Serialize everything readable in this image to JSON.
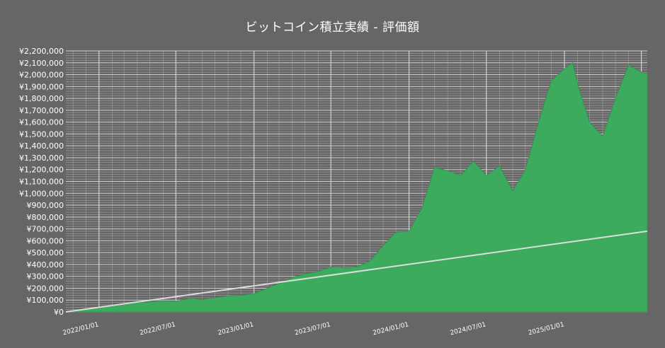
{
  "chart_data": {
    "type": "area",
    "title": "ビットコイン積立実績 - 評価額",
    "xlabel": "",
    "ylabel": "",
    "x_range": [
      "2021/10/15",
      "2025/07/15"
    ],
    "ylim": [
      0,
      2200000
    ],
    "y_tick_values": [
      0,
      100000,
      200000,
      300000,
      400000,
      500000,
      600000,
      700000,
      800000,
      900000,
      1000000,
      1100000,
      1200000,
      1300000,
      1400000,
      1500000,
      1600000,
      1700000,
      1800000,
      1900000,
      2000000,
      2100000,
      2200000
    ],
    "y_tick_labels": [
      "¥0",
      "¥100,000",
      "¥200,000",
      "¥300,000",
      "¥400,000",
      "¥500,000",
      "¥600,000",
      "¥700,000",
      "¥800,000",
      "¥900,000",
      "¥1,000,000",
      "¥1,100,000",
      "¥1,200,000",
      "¥1,300,000",
      "¥1,400,000",
      "¥1,500,000",
      "¥1,600,000",
      "¥1,700,000",
      "¥1,800,000",
      "¥1,900,000",
      "¥2,000,000",
      "¥2,100,000",
      "¥2,200,000"
    ],
    "x_tick_labels": [
      "2022/01/01",
      "2022/07/01",
      "2023/01/01",
      "2023/07/01",
      "2024/01/01",
      "2024/07/01",
      "2025/01/01"
    ],
    "grid": true,
    "colors": {
      "background": "#666666",
      "area": "#3dab5e",
      "line": "#dddddd",
      "grid": "#d6d6d6"
    },
    "series": [
      {
        "style": "area",
        "points": [
          [
            "2021/10/15",
            0
          ],
          [
            "2021/11/01",
            10000
          ],
          [
            "2021/12/01",
            25000
          ],
          [
            "2022/01/01",
            38000
          ],
          [
            "2022/02/01",
            50000
          ],
          [
            "2022/03/01",
            62000
          ],
          [
            "2022/04/01",
            78000
          ],
          [
            "2022/05/01",
            85000
          ],
          [
            "2022/06/01",
            95000
          ],
          [
            "2022/07/01",
            88000
          ],
          [
            "2022/08/01",
            115000
          ],
          [
            "2022/09/01",
            105000
          ],
          [
            "2022/10/01",
            120000
          ],
          [
            "2022/11/01",
            135000
          ],
          [
            "2022/12/01",
            140000
          ],
          [
            "2023/01/01",
            155000
          ],
          [
            "2023/02/01",
            200000
          ],
          [
            "2023/03/01",
            240000
          ],
          [
            "2023/04/01",
            290000
          ],
          [
            "2023/05/01",
            320000
          ],
          [
            "2023/06/01",
            340000
          ],
          [
            "2023/07/01",
            380000
          ],
          [
            "2023/08/01",
            370000
          ],
          [
            "2023/09/01",
            380000
          ],
          [
            "2023/10/01",
            430000
          ],
          [
            "2023/11/01",
            560000
          ],
          [
            "2023/12/01",
            670000
          ],
          [
            "2024/01/01",
            680000
          ],
          [
            "2024/02/01",
            880000
          ],
          [
            "2024/03/01",
            1220000
          ],
          [
            "2024/04/01",
            1190000
          ],
          [
            "2024/05/01",
            1150000
          ],
          [
            "2024/06/01",
            1270000
          ],
          [
            "2024/07/01",
            1150000
          ],
          [
            "2024/08/01",
            1230000
          ],
          [
            "2024/09/01",
            1020000
          ],
          [
            "2024/10/01",
            1200000
          ],
          [
            "2024/11/01",
            1600000
          ],
          [
            "2024/12/01",
            1950000
          ],
          [
            "2025/01/01",
            2050000
          ],
          [
            "2025/01/20",
            2100000
          ],
          [
            "2025/02/01",
            1920000
          ],
          [
            "2025/03/01",
            1600000
          ],
          [
            "2025/04/01",
            1480000
          ],
          [
            "2025/05/01",
            1800000
          ],
          [
            "2025/06/01",
            2080000
          ],
          [
            "2025/07/01",
            2020000
          ],
          [
            "2025/07/15",
            2010000
          ]
        ]
      },
      {
        "style": "line",
        "points": [
          [
            "2021/10/15",
            0
          ],
          [
            "2025/07/15",
            680000
          ]
        ]
      }
    ]
  }
}
